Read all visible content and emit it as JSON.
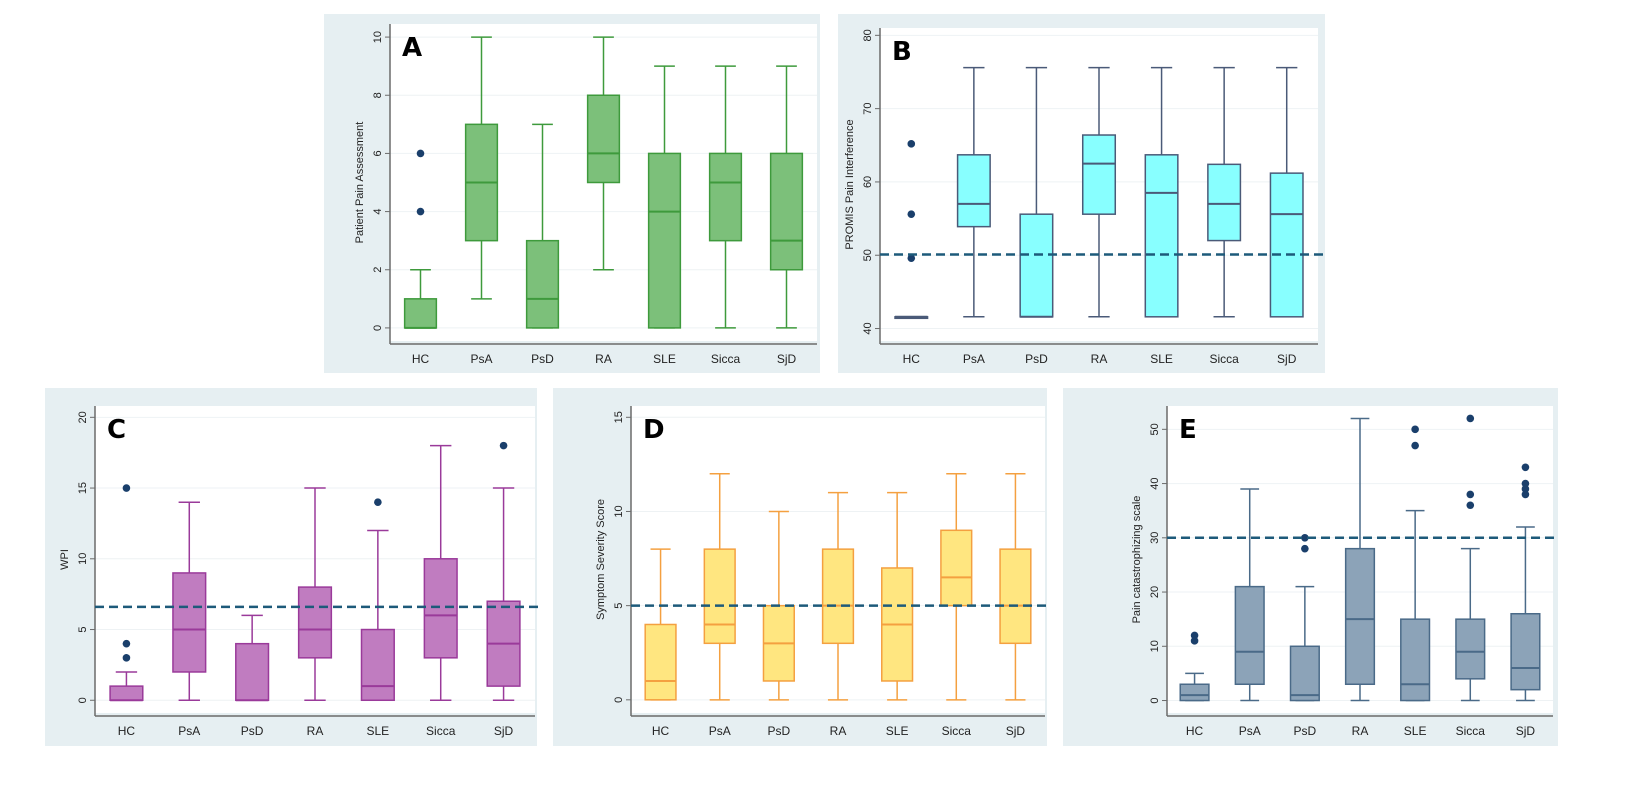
{
  "figure": {
    "categories": [
      "HC",
      "PsA",
      "PsD",
      "RA",
      "SLE",
      "Sicca",
      "SjD"
    ]
  },
  "chart_data": [
    {
      "id": "A",
      "type": "box",
      "panel_label": "A",
      "title": "",
      "xlabel": "",
      "ylabel": "Patient Pain Assessment",
      "categories": [
        "HC",
        "PsA",
        "PsD",
        "RA",
        "SLE",
        "Sicca",
        "SjD"
      ],
      "ylim": [
        0,
        10
      ],
      "yticks": [
        0,
        2,
        4,
        6,
        8,
        10
      ],
      "grid": true,
      "reference_line": null,
      "colors": {
        "fill": "#7cc07a",
        "stroke": "#3e9a3c",
        "outlier": "#1a3f6b"
      },
      "boxes": [
        {
          "category": "HC",
          "whisker_low": 0,
          "q1": 0,
          "median": 0,
          "q3": 1,
          "whisker_high": 2,
          "outliers": [
            4,
            6
          ]
        },
        {
          "category": "PsA",
          "whisker_low": 1,
          "q1": 3,
          "median": 5,
          "q3": 7,
          "whisker_high": 10,
          "outliers": []
        },
        {
          "category": "PsD",
          "whisker_low": 0,
          "q1": 0,
          "median": 1,
          "q3": 3,
          "whisker_high": 7,
          "outliers": []
        },
        {
          "category": "RA",
          "whisker_low": 2,
          "q1": 5,
          "median": 6,
          "q3": 8,
          "whisker_high": 10,
          "outliers": []
        },
        {
          "category": "SLE",
          "whisker_low": 0,
          "q1": 0,
          "median": 4,
          "q3": 6,
          "whisker_high": 9,
          "outliers": []
        },
        {
          "category": "Sicca",
          "whisker_low": 0,
          "q1": 3,
          "median": 5,
          "q3": 6,
          "whisker_high": 9,
          "outliers": []
        },
        {
          "category": "SjD",
          "whisker_low": 0,
          "q1": 2,
          "median": 3,
          "q3": 6,
          "whisker_high": 9,
          "outliers": []
        }
      ]
    },
    {
      "id": "B",
      "type": "box",
      "panel_label": "B",
      "title": "",
      "xlabel": "",
      "ylabel": "PROMIS Pain Interference",
      "categories": [
        "HC",
        "PsA",
        "PsD",
        "RA",
        "SLE",
        "Sicca",
        "SjD"
      ],
      "ylim": [
        40,
        80
      ],
      "yticks": [
        40,
        50,
        60,
        70,
        80
      ],
      "grid": true,
      "reference_line": 50.1,
      "colors": {
        "fill": "#88ffff",
        "stroke": "#4a5a78",
        "outlier": "#1a3f6b"
      },
      "boxes": [
        {
          "category": "HC",
          "whisker_low": 41.6,
          "q1": 41.6,
          "median": 41.6,
          "q3": 41.6,
          "whisker_high": 41.6,
          "outliers": [
            49.6,
            55.6,
            65.2
          ]
        },
        {
          "category": "PsA",
          "whisker_low": 41.6,
          "q1": 53.9,
          "median": 57.0,
          "q3": 63.7,
          "whisker_high": 75.6,
          "outliers": []
        },
        {
          "category": "PsD",
          "whisker_low": 41.6,
          "q1": 41.6,
          "median": 41.6,
          "q3": 55.6,
          "whisker_high": 75.6,
          "outliers": []
        },
        {
          "category": "RA",
          "whisker_low": 41.6,
          "q1": 55.6,
          "median": 62.5,
          "q3": 66.4,
          "whisker_high": 75.6,
          "outliers": []
        },
        {
          "category": "SLE",
          "whisker_low": 41.6,
          "q1": 41.6,
          "median": 58.5,
          "q3": 63.7,
          "whisker_high": 75.6,
          "outliers": []
        },
        {
          "category": "Sicca",
          "whisker_low": 41.6,
          "q1": 52.0,
          "median": 57.0,
          "q3": 62.4,
          "whisker_high": 75.6,
          "outliers": []
        },
        {
          "category": "SjD",
          "whisker_low": 41.6,
          "q1": 41.6,
          "median": 55.6,
          "q3": 61.2,
          "whisker_high": 75.6,
          "outliers": []
        }
      ]
    },
    {
      "id": "C",
      "type": "box",
      "panel_label": "C",
      "title": "",
      "xlabel": "",
      "ylabel": "WPI",
      "categories": [
        "HC",
        "PsA",
        "PsD",
        "RA",
        "SLE",
        "Sicca",
        "SjD"
      ],
      "ylim": [
        0,
        20
      ],
      "yticks": [
        0,
        5,
        10,
        15,
        20
      ],
      "grid": true,
      "reference_line": 6.6,
      "colors": {
        "fill": "#c07cc0",
        "stroke": "#9a3a9a",
        "outlier": "#1a3f6b"
      },
      "boxes": [
        {
          "category": "HC",
          "whisker_low": 0,
          "q1": 0,
          "median": 0,
          "q3": 1,
          "whisker_high": 2,
          "outliers": [
            3,
            4,
            15
          ]
        },
        {
          "category": "PsA",
          "whisker_low": 0,
          "q1": 2,
          "median": 5,
          "q3": 9,
          "whisker_high": 14,
          "outliers": []
        },
        {
          "category": "PsD",
          "whisker_low": 0,
          "q1": 0,
          "median": 0,
          "q3": 4,
          "whisker_high": 6,
          "outliers": []
        },
        {
          "category": "RA",
          "whisker_low": 0,
          "q1": 3,
          "median": 5,
          "q3": 8,
          "whisker_high": 15,
          "outliers": []
        },
        {
          "category": "SLE",
          "whisker_low": 0,
          "q1": 0,
          "median": 1,
          "q3": 5,
          "whisker_high": 12,
          "outliers": [
            14
          ]
        },
        {
          "category": "Sicca",
          "whisker_low": 0,
          "q1": 3,
          "median": 6,
          "q3": 10,
          "whisker_high": 18,
          "outliers": []
        },
        {
          "category": "SjD",
          "whisker_low": 0,
          "q1": 1,
          "median": 4,
          "q3": 7,
          "whisker_high": 15,
          "outliers": [
            18
          ]
        }
      ]
    },
    {
      "id": "D",
      "type": "box",
      "panel_label": "D",
      "title": "",
      "xlabel": "",
      "ylabel": "Symptom Severity Score",
      "categories": [
        "HC",
        "PsA",
        "PsD",
        "RA",
        "SLE",
        "Sicca",
        "SjD"
      ],
      "ylim": [
        0,
        15
      ],
      "yticks": [
        0,
        5,
        10,
        15
      ],
      "grid": true,
      "reference_line": 5,
      "colors": {
        "fill": "#ffe680",
        "stroke": "#f4a040",
        "outlier": "#1a3f6b"
      },
      "boxes": [
        {
          "category": "HC",
          "whisker_low": 0,
          "q1": 0,
          "median": 1,
          "q3": 4,
          "whisker_high": 8,
          "outliers": []
        },
        {
          "category": "PsA",
          "whisker_low": 0,
          "q1": 3,
          "median": 4,
          "q3": 8,
          "whisker_high": 12,
          "outliers": []
        },
        {
          "category": "PsD",
          "whisker_low": 0,
          "q1": 1,
          "median": 3,
          "q3": 5,
          "whisker_high": 10,
          "outliers": []
        },
        {
          "category": "RA",
          "whisker_low": 0,
          "q1": 3,
          "median": 5,
          "q3": 8,
          "whisker_high": 11,
          "outliers": []
        },
        {
          "category": "SLE",
          "whisker_low": 0,
          "q1": 1,
          "median": 4,
          "q3": 7,
          "whisker_high": 11,
          "outliers": []
        },
        {
          "category": "Sicca",
          "whisker_low": 0,
          "q1": 5,
          "median": 6.5,
          "q3": 9,
          "whisker_high": 12,
          "outliers": []
        },
        {
          "category": "SjD",
          "whisker_low": 0,
          "q1": 3,
          "median": 5,
          "q3": 8,
          "whisker_high": 12,
          "outliers": []
        }
      ]
    },
    {
      "id": "E",
      "type": "box",
      "panel_label": "E",
      "title": "",
      "xlabel": "",
      "ylabel": "Pain catastrophizing scale",
      "categories": [
        "HC",
        "PsA",
        "PsD",
        "RA",
        "SLE",
        "Sicca",
        "SjD"
      ],
      "ylim": [
        0,
        52
      ],
      "yticks": [
        0,
        10,
        20,
        30,
        40,
        50
      ],
      "grid": true,
      "reference_line": 30,
      "colors": {
        "fill": "#8ca3b8",
        "stroke": "#4a6a88",
        "outlier": "#1a3f6b"
      },
      "boxes": [
        {
          "category": "HC",
          "whisker_low": 0,
          "q1": 0,
          "median": 1,
          "q3": 3,
          "whisker_high": 5,
          "outliers": [
            11,
            12
          ]
        },
        {
          "category": "PsA",
          "whisker_low": 0,
          "q1": 3,
          "median": 9,
          "q3": 21,
          "whisker_high": 39,
          "outliers": []
        },
        {
          "category": "PsD",
          "whisker_low": 0,
          "q1": 0,
          "median": 1,
          "q3": 10,
          "whisker_high": 21,
          "outliers": [
            28,
            30
          ]
        },
        {
          "category": "RA",
          "whisker_low": 0,
          "q1": 3,
          "median": 15,
          "q3": 28,
          "whisker_high": 52,
          "outliers": []
        },
        {
          "category": "SLE",
          "whisker_low": 0,
          "q1": 0,
          "median": 3,
          "q3": 15,
          "whisker_high": 35,
          "outliers": [
            47,
            50
          ]
        },
        {
          "category": "Sicca",
          "whisker_low": 0,
          "q1": 4,
          "median": 9,
          "q3": 15,
          "whisker_high": 28,
          "outliers": [
            36,
            38,
            52
          ]
        },
        {
          "category": "SjD",
          "whisker_low": 0,
          "q1": 2,
          "median": 6,
          "q3": 16,
          "whisker_high": 32,
          "outliers": [
            38,
            39,
            40,
            43
          ]
        }
      ]
    }
  ]
}
